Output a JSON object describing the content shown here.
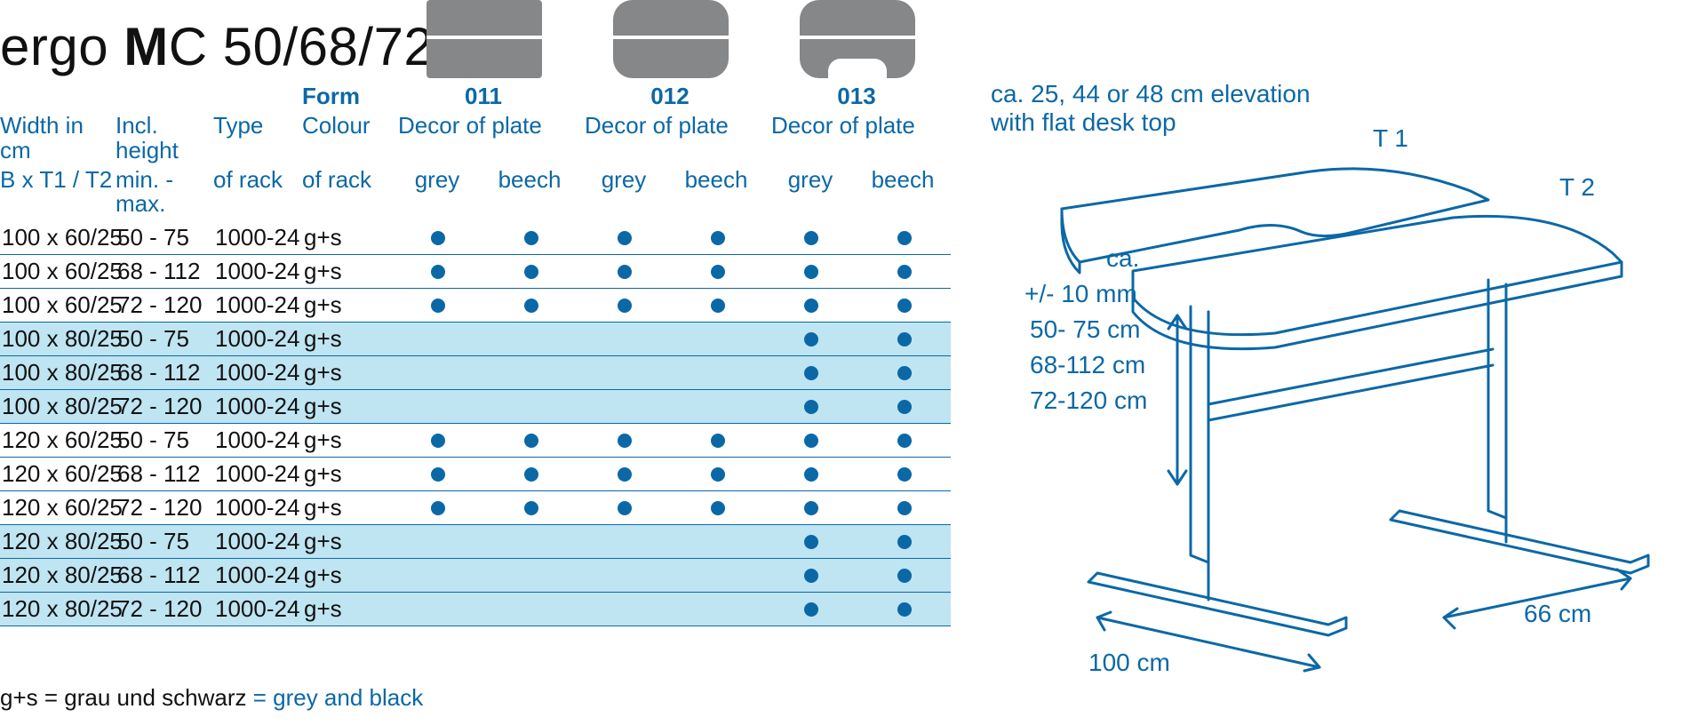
{
  "title": {
    "pre": "ergo ",
    "bold": "M",
    "rest": "C 50/68/72 R"
  },
  "colors": {
    "brand_blue": "#0b68a6",
    "row_alt_bg": "#bfe4f2",
    "shape_grey": "#868788",
    "text": "#111111",
    "bg": "#ffffff"
  },
  "forms": [
    {
      "code": "011",
      "style": "rect"
    },
    {
      "code": "012",
      "style": "rounded"
    },
    {
      "code": "013",
      "style": "rounded_cut"
    }
  ],
  "header": {
    "width_l1": "Width in cm",
    "width_l2": "B  x T1 / T2",
    "height_l1": "Incl. height",
    "height_l2": "min. - max.",
    "type_l1": "Type",
    "type_l2": "of rack",
    "form_l0": "Form",
    "form_l1": "Colour",
    "form_l2": "of rack",
    "decor": "Decor of plate",
    "grey": "grey",
    "beech": "beech"
  },
  "table": {
    "columns": [
      "width",
      "height",
      "type",
      "colour",
      "d011",
      "d012",
      "d013"
    ],
    "rows": [
      {
        "width": "100 x 60/25",
        "height": "50 -   75",
        "type": "1000-24",
        "colour": "g+s",
        "d011": [
          true,
          true
        ],
        "d012": [
          true,
          true
        ],
        "d013": [
          true,
          true
        ],
        "alt": false
      },
      {
        "width": "100 x 60/25",
        "height": "68 - 112",
        "type": "1000-24",
        "colour": "g+s",
        "d011": [
          true,
          true
        ],
        "d012": [
          true,
          true
        ],
        "d013": [
          true,
          true
        ],
        "alt": false
      },
      {
        "width": "100 x 60/25",
        "height": "72 - 120",
        "type": "1000-24",
        "colour": "g+s",
        "d011": [
          true,
          true
        ],
        "d012": [
          true,
          true
        ],
        "d013": [
          true,
          true
        ],
        "alt": false
      },
      {
        "width": "100 x 80/25",
        "height": "50 -   75",
        "type": "1000-24",
        "colour": "g+s",
        "d011": [
          false,
          false
        ],
        "d012": [
          false,
          false
        ],
        "d013": [
          true,
          true
        ],
        "alt": true
      },
      {
        "width": "100 x 80/25",
        "height": "68 - 112",
        "type": "1000-24",
        "colour": "g+s",
        "d011": [
          false,
          false
        ],
        "d012": [
          false,
          false
        ],
        "d013": [
          true,
          true
        ],
        "alt": true
      },
      {
        "width": "100 x 80/25",
        "height": "72 - 120",
        "type": "1000-24",
        "colour": "g+s",
        "d011": [
          false,
          false
        ],
        "d012": [
          false,
          false
        ],
        "d013": [
          true,
          true
        ],
        "alt": true
      },
      {
        "width": "120 x 60/25",
        "height": "50 -   75",
        "type": "1000-24",
        "colour": "g+s",
        "d011": [
          true,
          true
        ],
        "d012": [
          true,
          true
        ],
        "d013": [
          true,
          true
        ],
        "alt": false
      },
      {
        "width": "120 x 60/25",
        "height": "68 - 112",
        "type": "1000-24",
        "colour": "g+s",
        "d011": [
          true,
          true
        ],
        "d012": [
          true,
          true
        ],
        "d013": [
          true,
          true
        ],
        "alt": false
      },
      {
        "width": "120 x 60/25",
        "height": "72 - 120",
        "type": "1000-24",
        "colour": "g+s",
        "d011": [
          true,
          true
        ],
        "d012": [
          true,
          true
        ],
        "d013": [
          true,
          true
        ],
        "alt": false
      },
      {
        "width": "120 x 80/25",
        "height": "50 -   75",
        "type": "1000-24",
        "colour": "g+s",
        "d011": [
          false,
          false
        ],
        "d012": [
          false,
          false
        ],
        "d013": [
          true,
          true
        ],
        "alt": true
      },
      {
        "width": "120 x 80/25",
        "height": "68 - 112",
        "type": "1000-24",
        "colour": "g+s",
        "d011": [
          false,
          false
        ],
        "d012": [
          false,
          false
        ],
        "d013": [
          true,
          true
        ],
        "alt": true
      },
      {
        "width": "120 x 80/25",
        "height": "72 - 120",
        "type": "1000-24",
        "colour": "g+s",
        "d011": [
          false,
          false
        ],
        "d012": [
          false,
          false
        ],
        "d013": [
          true,
          true
        ],
        "alt": true
      }
    ]
  },
  "footnote": {
    "black": "g+s = grau und schwarz  ",
    "blue": "= grey and black"
  },
  "diagram": {
    "caption_l1": "ca. 25, 44 or 48 cm elevation",
    "caption_l2": "with flat desk top",
    "labels": {
      "t1": "T 1",
      "t2": "T 2",
      "ca": "ca.",
      "tol": "+/- 10 mm",
      "h1": "50-  75 cm",
      "h2": "68-112 cm",
      "h3": "72-120 cm",
      "w": "100 cm",
      "d": "66 cm"
    }
  }
}
